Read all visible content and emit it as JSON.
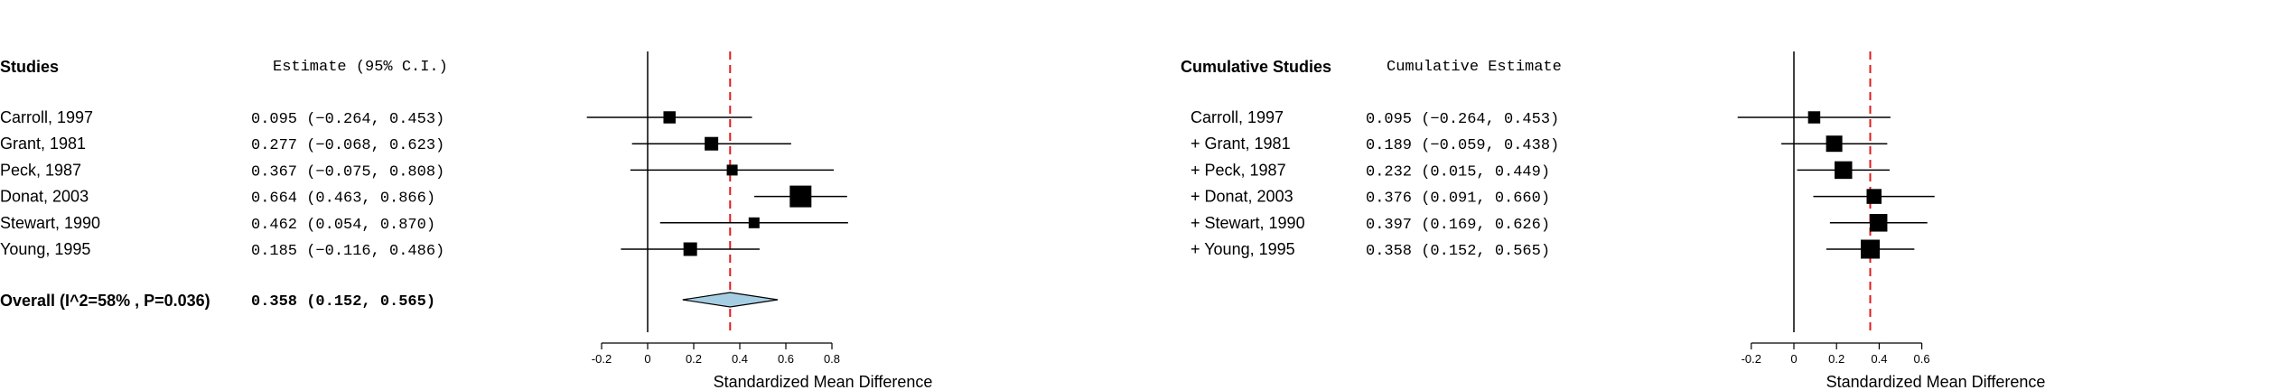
{
  "chart_data": [
    {
      "type": "forest",
      "title": "",
      "header_label": "Studies",
      "header_estimate": "Estimate (95% C.I.)",
      "xlabel": "Standardized Mean Difference",
      "xlim": [
        -0.2,
        0.8
      ],
      "xticks": [
        "-0.2",
        "0",
        "0.2",
        "0.4",
        "0.6",
        "0.8"
      ],
      "xtick_values": [
        -0.2,
        0,
        0.2,
        0.4,
        0.6,
        0.8
      ],
      "reference_line": 0.358,
      "studies": [
        {
          "label": "Carroll, 1997",
          "estimate": 0.095,
          "ci_low": -0.264,
          "ci_high": 0.453,
          "text": "0.095 (−0.264, 0.453)",
          "weight": 0.9
        },
        {
          "label": "Grant, 1981",
          "estimate": 0.277,
          "ci_low": -0.068,
          "ci_high": 0.623,
          "text": "0.277 (−0.068, 0.623)",
          "weight": 1.0
        },
        {
          "label": "Peck, 1987",
          "estimate": 0.367,
          "ci_low": -0.075,
          "ci_high": 0.808,
          "text": "0.367 (−0.075, 0.808)",
          "weight": 0.8
        },
        {
          "label": "Donat, 2003",
          "estimate": 0.664,
          "ci_low": 0.463,
          "ci_high": 0.866,
          "text": "0.664 (0.463, 0.866)",
          "weight": 1.6
        },
        {
          "label": "Stewart, 1990",
          "estimate": 0.462,
          "ci_low": 0.054,
          "ci_high": 0.87,
          "text": "0.462 (0.054, 0.870)",
          "weight": 0.8
        },
        {
          "label": "Young, 1995",
          "estimate": 0.185,
          "ci_low": -0.116,
          "ci_high": 0.486,
          "text": "0.185 (−0.116, 0.486)",
          "weight": 1.0
        }
      ],
      "overall": {
        "label": "Overall (I^2=58% , P=0.036)",
        "estimate": 0.358,
        "ci_low": 0.152,
        "ci_high": 0.565,
        "text": "0.358 (0.152, 0.565)"
      },
      "colors": {
        "diamond": "#a6cee3",
        "reference": "#e31a1c"
      }
    },
    {
      "type": "forest",
      "title": "",
      "header_label": "Cumulative Studies",
      "header_estimate": "Cumulative Estimate",
      "xlabel": "Standardized Mean Difference",
      "xlim": [
        -0.2,
        0.6
      ],
      "xticks": [
        "-0.2",
        "0",
        "0.2",
        "0.4",
        "0.6"
      ],
      "xtick_values": [
        -0.2,
        0,
        0.2,
        0.4,
        0.6
      ],
      "reference_line": 0.358,
      "studies": [
        {
          "label": "Carroll, 1997",
          "estimate": 0.095,
          "ci_low": -0.264,
          "ci_high": 0.453,
          "text": "0.095 (−0.264, 0.453)",
          "weight": 0.9
        },
        {
          "label": "+ Grant, 1981",
          "estimate": 0.189,
          "ci_low": -0.059,
          "ci_high": 0.438,
          "text": "0.189 (−0.059, 0.438)",
          "weight": 1.2
        },
        {
          "label": "+ Peck, 1987",
          "estimate": 0.232,
          "ci_low": 0.015,
          "ci_high": 0.449,
          "text": "0.232 (0.015, 0.449)",
          "weight": 1.3
        },
        {
          "label": "+ Donat, 2003",
          "estimate": 0.376,
          "ci_low": 0.091,
          "ci_high": 0.66,
          "text": "0.376 (0.091, 0.660)",
          "weight": 1.1
        },
        {
          "label": "+ Stewart, 1990",
          "estimate": 0.397,
          "ci_low": 0.169,
          "ci_high": 0.626,
          "text": "0.397 (0.169, 0.626)",
          "weight": 1.3
        },
        {
          "label": "+ Young, 1995",
          "estimate": 0.358,
          "ci_low": 0.152,
          "ci_high": 0.565,
          "text": "0.358 (0.152, 0.565)",
          "weight": 1.4
        }
      ],
      "colors": {
        "reference": "#e31a1c"
      }
    }
  ]
}
